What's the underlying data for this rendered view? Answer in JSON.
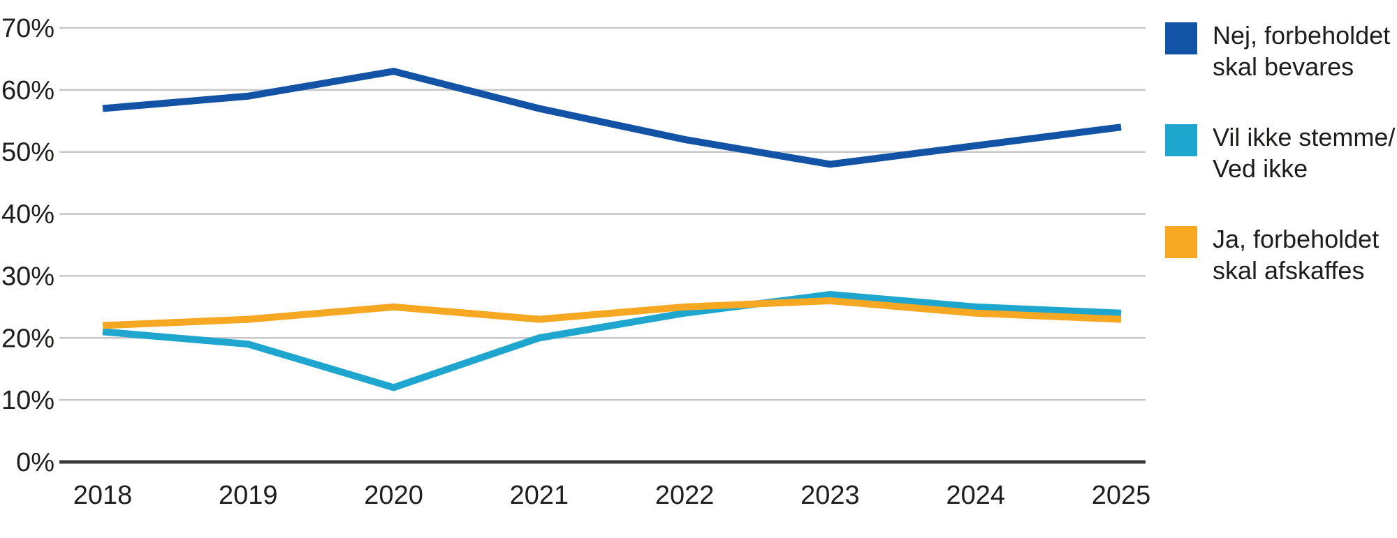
{
  "chart_data": {
    "type": "line",
    "title": "",
    "xlabel": "",
    "ylabel": "",
    "x": [
      2018,
      2019,
      2020,
      2021,
      2022,
      2023,
      2024,
      2025
    ],
    "x_tick_labels": [
      "2018",
      "2019",
      "2020",
      "2021",
      "2022",
      "2023",
      "2024",
      "2025"
    ],
    "y_tick_labels": [
      "0%",
      "10%",
      "20%",
      "30%",
      "40%",
      "50%",
      "60%",
      "70%"
    ],
    "y_tick_values": [
      0,
      10,
      20,
      30,
      40,
      50,
      60,
      70
    ],
    "ylim": [
      0,
      70
    ],
    "grid": "horizontal",
    "legend_position": "right",
    "series": [
      {
        "name": "Nej, forbeholdet skal bevares",
        "label_lines": [
          "Nej, forbeholdet",
          "skal bevares"
        ],
        "color": "#1353A5",
        "values": [
          57,
          59,
          63,
          57,
          52,
          48,
          51,
          54
        ]
      },
      {
        "name": "Vil ikke stemme/Ved ikke",
        "label_lines": [
          "Vil ikke stemme/",
          "Ved ikke"
        ],
        "color": "#1FA6CE",
        "values": [
          21,
          19,
          12,
          20,
          24,
          27,
          25,
          24
        ]
      },
      {
        "name": "Ja, forbeholdet skal afskaffes",
        "label_lines": [
          "Ja, forbeholdet",
          "skal afskaffes"
        ],
        "color": "#F6A823",
        "values": [
          22,
          23,
          25,
          23,
          25,
          26,
          24,
          23
        ]
      }
    ]
  },
  "colors": {
    "grid": "#C7C7C7",
    "axis": "#3A3A39",
    "text": "#1D1D1B",
    "background": "#FFFFFF"
  }
}
